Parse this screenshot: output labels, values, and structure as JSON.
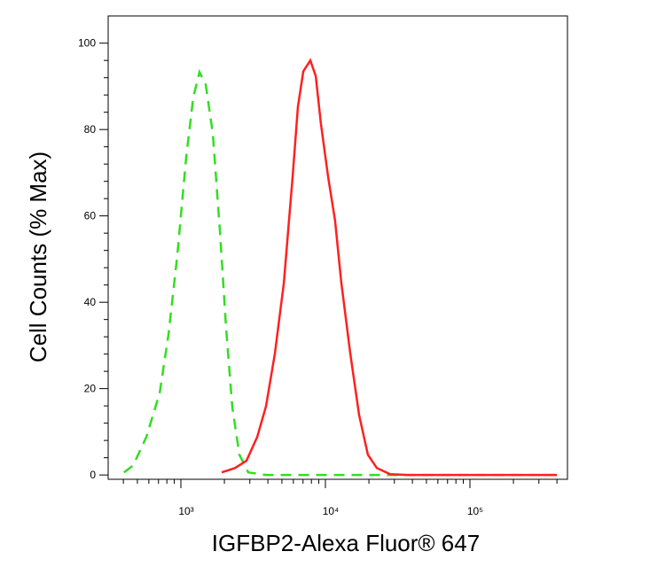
{
  "chart_data": {
    "type": "line",
    "xlabel": "IGFBP2-Alexa Fluor® 647",
    "ylabel": "Cell Counts (% Max)",
    "xscale": "log",
    "xlim": [
      314,
      473000
    ],
    "ylim": [
      -1,
      106.3
    ],
    "xticks": [
      {
        "value": 1000,
        "label": "10³"
      },
      {
        "value": 10000,
        "label": "10⁴"
      },
      {
        "value": 100000,
        "label": "10⁵"
      }
    ],
    "yticks": [
      0,
      20,
      40,
      60,
      80,
      100
    ],
    "series": [
      {
        "color": "#33dd22",
        "linestyle": "dashed",
        "x": [
          404,
          467,
          577,
          713,
          820,
          945,
          1089,
          1219,
          1346,
          1485,
          1663,
          1862,
          2056,
          2270,
          2541,
          2924,
          3881,
          400000
        ],
        "values": [
          0.6,
          2.2,
          8.8,
          19,
          32.5,
          50.9,
          73.6,
          87.5,
          93.3,
          90.4,
          79.1,
          56.6,
          34,
          15.7,
          4.7,
          0.6,
          0,
          0
        ]
      },
      {
        "color": "#ff2020",
        "linestyle": "solid",
        "x": [
          1914,
          2366,
          2844,
          3373,
          3881,
          4467,
          5152,
          5929,
          6457,
          7030,
          7870,
          8570,
          9310,
          10430,
          11670,
          12880,
          14850,
          17100,
          19680,
          22680,
          28050,
          37220,
          400000
        ],
        "values": [
          0.6,
          1.6,
          3.3,
          8.8,
          15.9,
          28.1,
          44.4,
          69,
          85.3,
          93.5,
          96,
          92.4,
          81.4,
          69.1,
          58.9,
          44.6,
          28.2,
          13.9,
          4.7,
          1.6,
          0.2,
          0,
          0
        ]
      }
    ]
  }
}
